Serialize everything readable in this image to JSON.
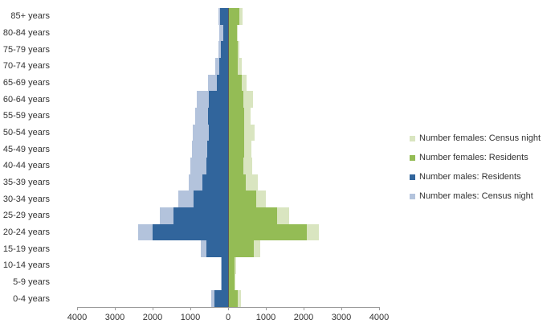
{
  "chart_data": {
    "type": "bar",
    "variant": "population-pyramid-overlapped",
    "title": "",
    "categories": [
      "85+ years",
      "80-84 years",
      "75-79 years",
      "70-74 years",
      "65-69 years",
      "60-64 years",
      "55-59 years",
      "50-54 years",
      "45-49 years",
      "40-44 years",
      "35-39 years",
      "30-34 years",
      "25-29 years",
      "20-24 years",
      "15-19 years",
      "10-14 years",
      "5-9 years",
      "0-4 years"
    ],
    "series": [
      {
        "name": "Number females: Census night",
        "side": "right",
        "z": 0,
        "color": "#D9E5C0",
        "values": [
          390,
          260,
          300,
          370,
          480,
          670,
          590,
          710,
          620,
          640,
          780,
          1000,
          1620,
          2400,
          860,
          220,
          200,
          340
        ]
      },
      {
        "name": "Number females: Residents",
        "side": "right",
        "z": 1,
        "color": "#94BC55",
        "values": [
          300,
          230,
          250,
          260,
          370,
          410,
          430,
          430,
          430,
          400,
          460,
          750,
          1300,
          2080,
          680,
          180,
          180,
          250
        ]
      },
      {
        "name": "Number males: Residents",
        "side": "left",
        "z": 1,
        "color": "#31659C",
        "values": [
          210,
          130,
          190,
          230,
          300,
          510,
          530,
          520,
          550,
          570,
          690,
          920,
          1440,
          2010,
          570,
          160,
          160,
          370
        ]
      },
      {
        "name": "Number males: Census night",
        "side": "left",
        "z": 0,
        "color": "#B3C3DC",
        "values": [
          260,
          230,
          250,
          350,
          540,
          820,
          880,
          930,
          960,
          990,
          1050,
          1310,
          1810,
          2380,
          720,
          200,
          190,
          440
        ]
      }
    ],
    "x_axis": {
      "tick_labels": [
        "4000",
        "3000",
        "2000",
        "1000",
        "0",
        "1000",
        "2000",
        "3000",
        "4000"
      ],
      "max_each_side": 4000,
      "tick_interval": 1000
    },
    "y_axis_label": "",
    "x_axis_label": "",
    "grid": false,
    "legend_position": "right",
    "background_color": "#FFFFFF",
    "axis_color": "#9C9C9C",
    "center_axis_color": "#5A5A5A",
    "text_color": "#333333"
  }
}
